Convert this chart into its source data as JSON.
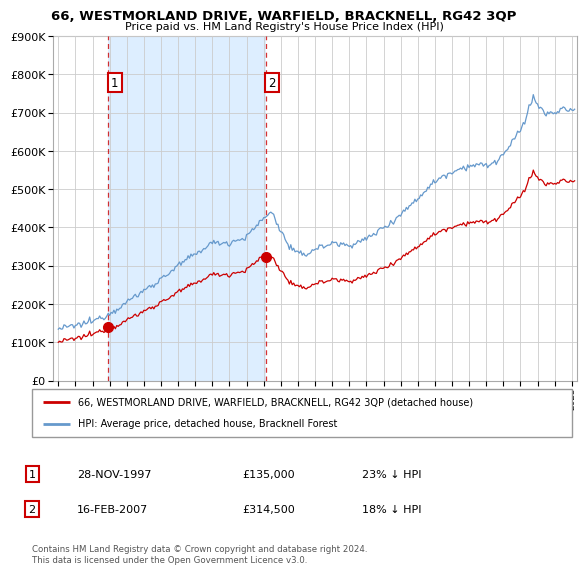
{
  "title": "66, WESTMORLAND DRIVE, WARFIELD, BRACKNELL, RG42 3QP",
  "subtitle": "Price paid vs. HM Land Registry's House Price Index (HPI)",
  "legend_label_red": "66, WESTMORLAND DRIVE, WARFIELD, BRACKNELL, RG42 3QP (detached house)",
  "legend_label_blue": "HPI: Average price, detached house, Bracknell Forest",
  "purchase1_date": "28-NOV-1997",
  "purchase1_price": 135000,
  "purchase1_pct": "23% ↓ HPI",
  "purchase2_date": "16-FEB-2007",
  "purchase2_price": 314500,
  "purchase2_pct": "18% ↓ HPI",
  "footnote": "Contains HM Land Registry data © Crown copyright and database right 2024.\nThis data is licensed under the Open Government Licence v3.0.",
  "ylim": [
    0,
    900000
  ],
  "yticks": [
    0,
    100000,
    200000,
    300000,
    400000,
    500000,
    600000,
    700000,
    800000,
    900000
  ],
  "red_color": "#cc0000",
  "blue_color": "#6699cc",
  "vline_color": "#cc0000",
  "shade_color": "#ddeeff",
  "grid_color": "#cccccc",
  "background_color": "#ffffff",
  "purchase1_x": 1997.92,
  "purchase2_x": 2007.12,
  "xlim_left": 1994.7,
  "xlim_right": 2025.3
}
